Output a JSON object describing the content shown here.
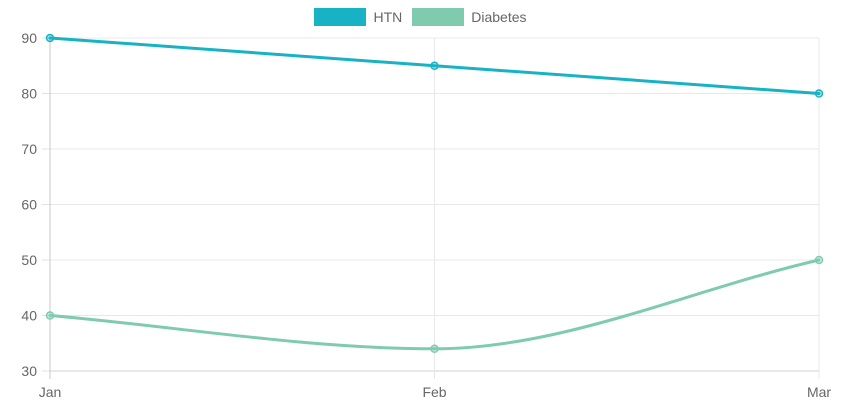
{
  "chart_data": {
    "type": "line",
    "categories": [
      "Jan",
      "Feb",
      "Mar"
    ],
    "series": [
      {
        "name": "HTN",
        "values": [
          90,
          85,
          80
        ],
        "color": "#17b3c4",
        "smooth": false
      },
      {
        "name": "Diabetes",
        "values": [
          40,
          34,
          50
        ],
        "color": "#7ecbb0",
        "smooth": true
      }
    ],
    "ylim": [
      30,
      90
    ],
    "yticks": [
      30,
      40,
      50,
      60,
      70,
      80,
      90
    ],
    "grid": true,
    "legend_position": "top"
  }
}
